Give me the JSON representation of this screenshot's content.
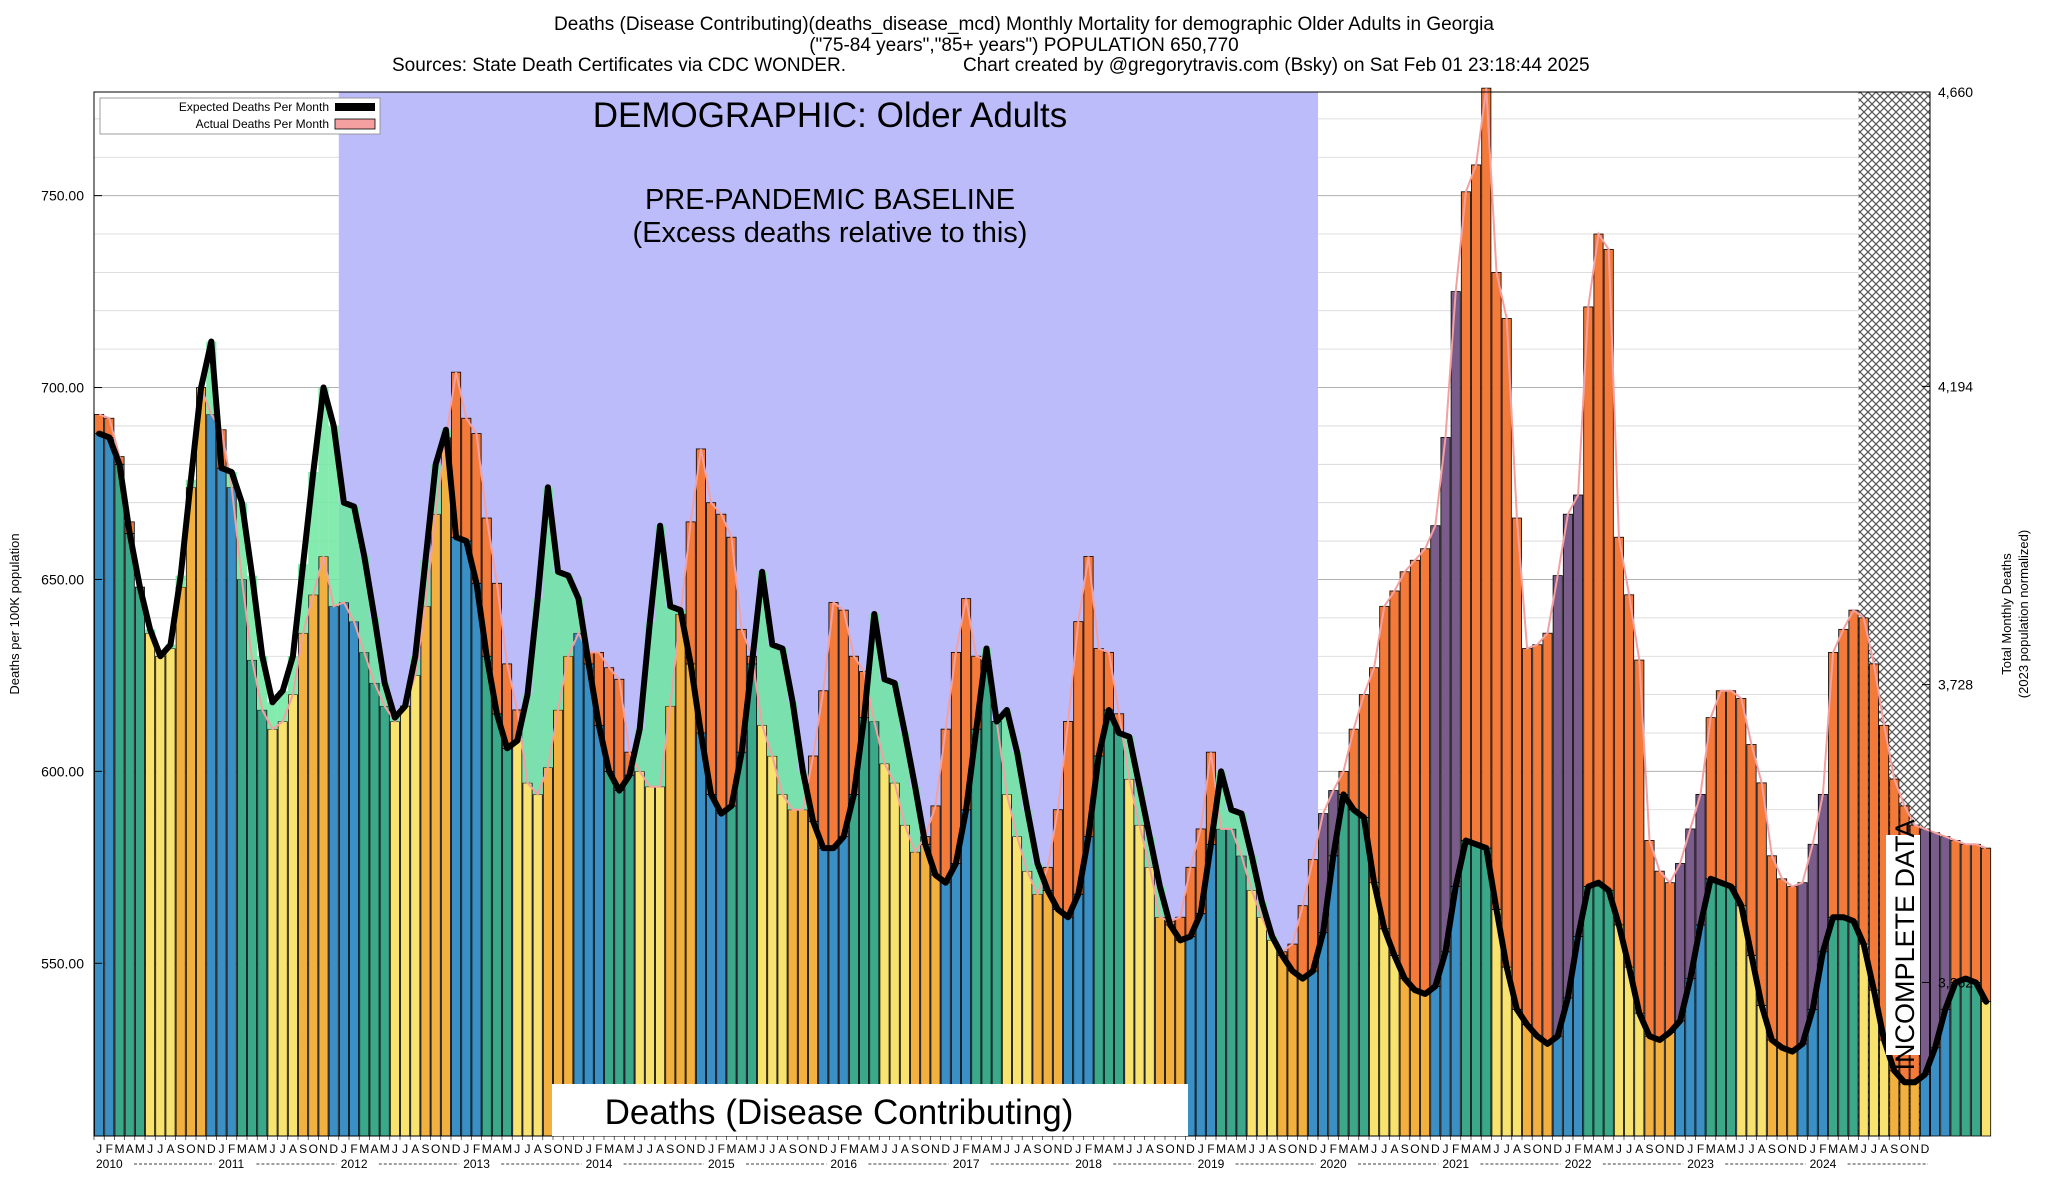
{
  "header": {
    "line1": "Deaths (Disease Contributing)(deaths_disease_mcd) Monthly Mortality for demographic Older Adults in Georgia",
    "line2": "(\"75-84 years\",\"85+ years\") POPULATION 650,770",
    "line3_left": "Sources: State Death Certificates via CDC WONDER.",
    "line3_right": "Chart created by @gregorytravis.com (Bsky) on Sat Feb 01 23:18:44 2025"
  },
  "legend": {
    "expected": "Expected Deaths Per Month",
    "actual": "Actual Deaths Per Month"
  },
  "annotations": {
    "demographic": "DEMOGRAPHIC: Older Adults",
    "baseline_line1": "PRE-PANDEMIC BASELINE",
    "baseline_line2": "(Excess deaths relative to this)",
    "metric": "Deaths (Disease Contributing)",
    "incomplete": "INCOMPLETE DATA"
  },
  "colors": {
    "summer": "#f7e36e",
    "autumn": "#f2b03e",
    "winter": "#3a8fc4",
    "spring": "#3aa889",
    "baseline": "#bcbcfa",
    "excess_positive": "#f47a3a",
    "excess_negative": "#6ee8a0",
    "excess_overlay": "#7a5c8a",
    "expected_line": "#000000",
    "actual_line": "#f4a0a0"
  },
  "chart_data": {
    "type": "bar",
    "title": "Deaths (Disease Contributing)(deaths_disease_mcd) Monthly Mortality for demographic Older Adults in Georgia",
    "ylabel_left": "Deaths per 100K population",
    "ylabel_right_1": "Total Monthly Deaths",
    "ylabel_right_2": "(2023 population normalized)",
    "ylim": [
      505,
      777
    ],
    "left_ticks": [
      "550.00",
      "600.00",
      "650.00",
      "700.00",
      "750.00"
    ],
    "left_tick_values": [
      550,
      600,
      650,
      700,
      750
    ],
    "right_ticks": [
      "3,262",
      "3,728",
      "4,194",
      "4,660"
    ],
    "right_tick_values": [
      545,
      622.6,
      700.3,
      777
    ],
    "month_letters": [
      "J",
      "F",
      "M",
      "A",
      "M",
      "J",
      "J",
      "A",
      "S",
      "O",
      "N",
      "D"
    ],
    "years": [
      "2010",
      "2011",
      "2012",
      "2013",
      "2014",
      "2015",
      "2016",
      "2017",
      "2018",
      "2019",
      "2020",
      "2021",
      "2022",
      "2023",
      "2024"
    ],
    "baseline_range": [
      "2012-01",
      "2019-12"
    ],
    "incomplete_from": "2024-06",
    "actual": [
      693,
      692,
      682,
      665,
      648,
      636,
      630,
      632,
      648,
      674,
      700,
      693,
      689,
      674,
      650,
      629,
      616,
      611,
      613,
      620,
      636,
      646,
      656,
      643,
      644,
      639,
      631,
      623,
      617,
      613,
      617,
      625,
      643,
      667,
      687,
      704,
      692,
      688,
      666,
      649,
      628,
      616,
      597,
      594,
      601,
      616,
      630,
      636,
      631,
      631,
      627,
      624,
      605,
      600,
      596,
      596,
      617,
      641,
      665,
      684,
      670,
      667,
      661,
      637,
      630,
      612,
      604,
      594,
      590,
      590,
      604,
      621,
      644,
      642,
      630,
      626,
      613,
      602,
      597,
      586,
      579,
      583,
      591,
      611,
      631,
      645,
      630,
      629,
      613,
      594,
      583,
      574,
      568,
      575,
      590,
      613,
      639,
      656,
      632,
      631,
      615,
      598,
      586,
      575,
      562,
      561,
      562,
      575,
      585,
      605,
      585,
      585,
      578,
      569,
      562,
      556,
      553,
      555,
      565,
      577,
      589,
      595,
      600,
      611,
      620,
      627,
      643,
      647,
      652,
      655,
      658,
      664,
      687,
      725,
      751,
      758,
      778,
      730,
      718,
      666,
      632,
      633,
      636,
      651,
      667,
      672,
      721,
      740,
      736,
      661,
      646,
      629,
      582,
      574,
      571,
      576,
      585,
      594,
      614,
      621,
      621,
      619,
      607,
      597,
      578,
      572,
      570,
      571,
      581,
      594,
      631,
      637,
      642,
      640,
      628,
      612,
      598,
      591,
      586,
      585,
      584,
      583,
      582,
      581,
      581,
      580
    ],
    "expected": [
      688,
      687,
      680,
      662,
      648,
      637,
      630,
      633,
      651,
      676,
      700,
      712,
      679,
      678,
      670,
      651,
      630,
      618,
      621,
      630,
      654,
      678,
      700,
      690,
      670,
      669,
      656,
      640,
      623,
      614,
      617,
      630,
      655,
      680,
      689,
      661,
      660,
      649,
      630,
      615,
      606,
      608,
      620,
      645,
      674,
      652,
      651,
      645,
      628,
      612,
      600,
      595,
      599,
      611,
      639,
      664,
      643,
      642,
      628,
      610,
      594,
      589,
      591,
      605,
      628,
      652,
      633,
      632,
      618,
      600,
      587,
      580,
      580,
      583,
      594,
      614,
      641,
      624,
      623,
      610,
      596,
      581,
      573,
      571,
      576,
      590,
      611,
      632,
      613,
      616,
      605,
      590,
      576,
      569,
      564,
      562,
      568,
      583,
      604,
      616,
      610,
      609,
      596,
      583,
      570,
      560,
      556,
      557,
      563,
      581,
      600,
      590,
      589,
      578,
      566,
      557,
      552,
      548,
      546,
      548,
      558,
      578,
      594,
      590,
      588,
      571,
      559,
      552,
      546,
      543,
      542,
      544,
      553,
      570,
      582,
      581,
      580,
      564,
      549,
      538,
      534,
      531,
      529,
      531,
      541,
      557,
      570,
      571,
      569,
      560,
      549,
      537,
      531,
      530,
      532,
      535,
      546,
      560,
      572,
      571,
      570,
      565,
      552,
      539,
      530,
      528,
      527,
      529,
      538,
      553,
      562,
      562,
      561,
      555,
      543,
      530,
      522,
      519,
      519,
      521,
      528,
      538,
      545,
      546,
      545,
      540
    ]
  }
}
